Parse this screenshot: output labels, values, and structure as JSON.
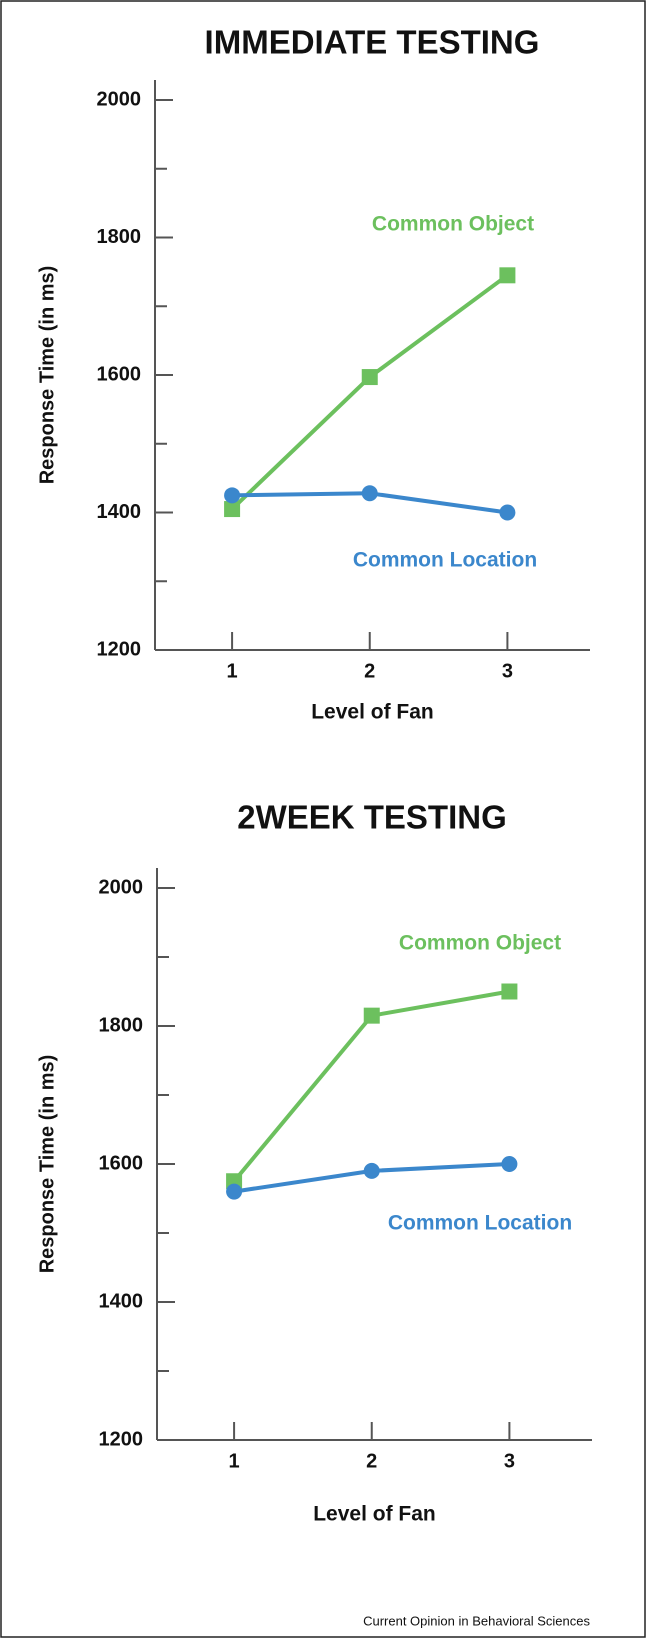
{
  "chart_data": [
    {
      "type": "line",
      "title": "IMMEDIATE TESTING",
      "xlabel": "Level of Fan",
      "ylabel": "Response Time (in ms)",
      "x": [
        1,
        2,
        3
      ],
      "xlim": [
        0.44,
        3.6
      ],
      "xticks": [
        1,
        2,
        3
      ],
      "ylim": [
        1200,
        2000
      ],
      "yticks": [
        1200,
        1400,
        1600,
        1800,
        2000
      ],
      "minor_yticks": [
        1300,
        1500,
        1700,
        1900
      ],
      "series": [
        {
          "name": "Common Object",
          "color": "#6cc05e",
          "marker": "square",
          "values": [
            1405,
            1597,
            1745
          ]
        },
        {
          "name": "Common Location",
          "color": "#3b87cc",
          "marker": "circle",
          "values": [
            1425,
            1428,
            1400
          ]
        }
      ]
    },
    {
      "type": "line",
      "title": "2WEEK TESTING",
      "xlabel": "Level of Fan",
      "ylabel": "Response Time (in ms)",
      "x": [
        1,
        2,
        3
      ],
      "xlim": [
        0.44,
        3.6
      ],
      "xticks": [
        1,
        2,
        3
      ],
      "ylim": [
        1200,
        2000
      ],
      "yticks": [
        1200,
        1400,
        1600,
        1800,
        2000
      ],
      "minor_yticks": [
        1300,
        1500,
        1700,
        1900
      ],
      "series": [
        {
          "name": "Common Object",
          "color": "#6cc05e",
          "marker": "square",
          "values": [
            1575,
            1815,
            1850
          ]
        },
        {
          "name": "Common Location",
          "color": "#3b87cc",
          "marker": "circle",
          "values": [
            1560,
            1590,
            1600
          ]
        }
      ]
    }
  ],
  "source": "Current Opinion in Behavioral Sciences"
}
